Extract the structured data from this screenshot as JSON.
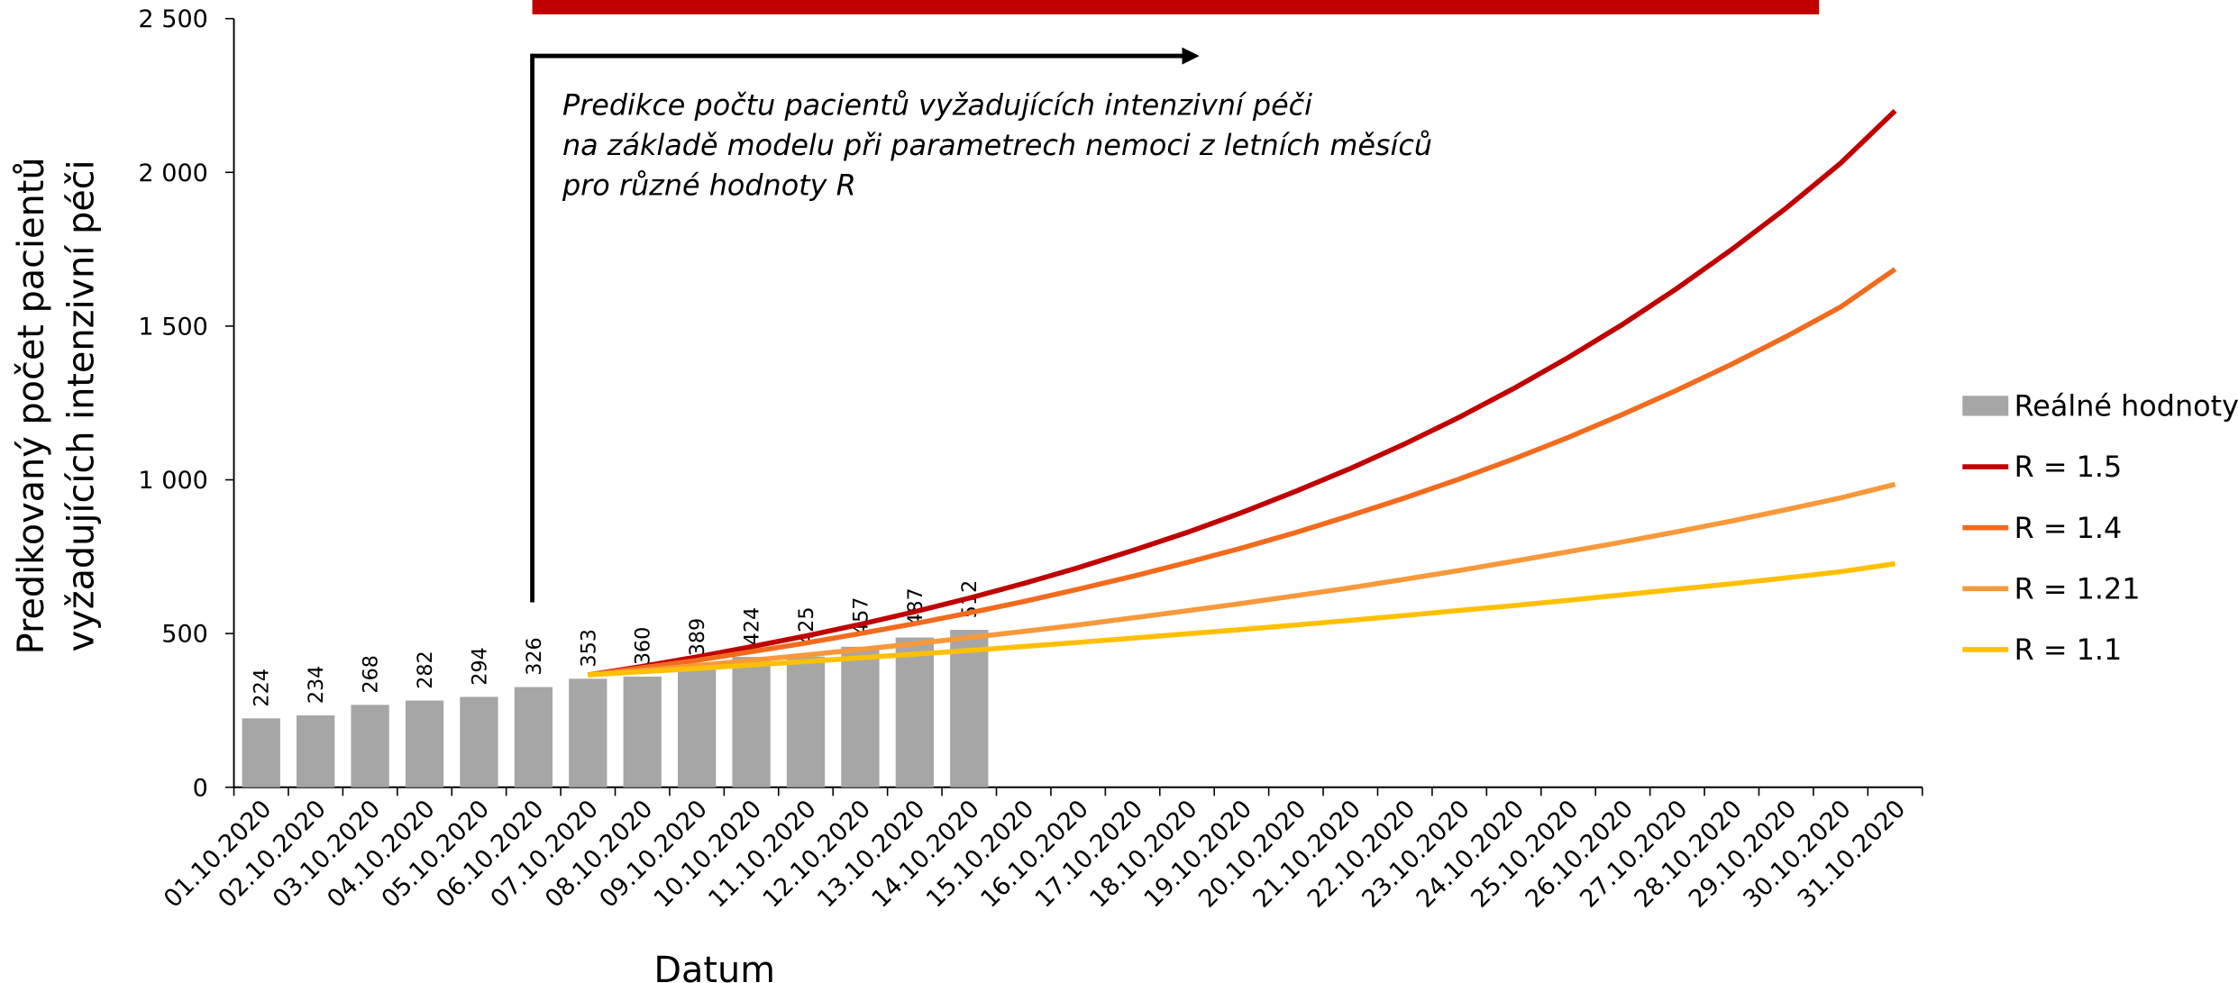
{
  "chart_data": {
    "type": "bar-line",
    "annotation": [
      "Predikce počtu pacientů vyžadujících intenzivní péči",
      "na základě modelu při parametrech nemoci z letních měsíců",
      "pro různé hodnoty R"
    ],
    "x_label": "Datum",
    "y_label": [
      "Predikovaný počet pacientů",
      "vyžadujících intenzivní péči"
    ],
    "categories": [
      "01.10.2020",
      "02.10.2020",
      "03.10.2020",
      "04.10.2020",
      "05.10.2020",
      "06.10.2020",
      "07.10.2020",
      "08.10.2020",
      "09.10.2020",
      "10.10.2020",
      "11.10.2020",
      "12.10.2020",
      "13.10.2020",
      "14.10.2020",
      "15.10.2020",
      "16.10.2020",
      "17.10.2020",
      "18.10.2020",
      "19.10.2020",
      "20.10.2020",
      "21.10.2020",
      "22.10.2020",
      "23.10.2020",
      "24.10.2020",
      "25.10.2020",
      "26.10.2020",
      "27.10.2020",
      "28.10.2020",
      "29.10.2020",
      "30.10.2020",
      "31.10.2020"
    ],
    "series": [
      {
        "name": "Reálné hodnoty",
        "kind": "bar",
        "color": "#a6a6a6",
        "values": [
          224,
          234,
          268,
          282,
          294,
          326,
          353,
          360,
          389,
          424,
          425,
          457,
          487,
          512,
          null,
          null,
          null,
          null,
          null,
          null,
          null,
          null,
          null,
          null,
          null,
          null,
          null,
          null,
          null,
          null,
          null
        ]
      },
      {
        "name": "R = 1.5",
        "kind": "line",
        "color": "#c00000",
        "values": [
          null,
          null,
          null,
          null,
          null,
          null,
          365,
          393,
          424,
          457,
          492,
          530,
          571,
          615,
          663,
          714,
          770,
          829,
          893,
          963,
          1037,
          1117,
          1204,
          1297,
          1398,
          1506,
          1623,
          1749,
          1884,
          2030,
          2200
        ]
      },
      {
        "name": "R = 1.4",
        "kind": "line",
        "color": "#f26b1d",
        "values": [
          null,
          null,
          null,
          null,
          null,
          null,
          365,
          389,
          413,
          441,
          469,
          500,
          532,
          567,
          604,
          644,
          686,
          731,
          778,
          829,
          884,
          941,
          1003,
          1068,
          1138,
          1213,
          1292,
          1376,
          1466,
          1562,
          1685
        ]
      },
      {
        "name": "R = 1.21",
        "kind": "line",
        "color": "#f7993a",
        "values": [
          null,
          null,
          null,
          null,
          null,
          null,
          365,
          380,
          396,
          413,
          430,
          448,
          467,
          487,
          507,
          528,
          551,
          574,
          598,
          623,
          649,
          677,
          705,
          735,
          766,
          798,
          831,
          866,
          903,
          941,
          985
        ]
      },
      {
        "name": "R = 1.1",
        "kind": "line",
        "color": "#ffc000",
        "values": [
          null,
          null,
          null,
          null,
          null,
          null,
          365,
          376,
          386,
          398,
          409,
          421,
          433,
          445,
          458,
          471,
          485,
          499,
          513,
          528,
          543,
          559,
          575,
          591,
          608,
          626,
          644,
          662,
          681,
          701,
          727
        ]
      }
    ],
    "ylim": [
      0,
      2500
    ],
    "yticks": [
      0,
      500,
      {
        "value": 1000,
        "label": "1 000"
      },
      {
        "value": 1500,
        "label": "1 500"
      },
      {
        "value": 2000,
        "label": "2 000"
      },
      {
        "value": 2500,
        "label": "2 500"
      }
    ],
    "legend": "right"
  }
}
